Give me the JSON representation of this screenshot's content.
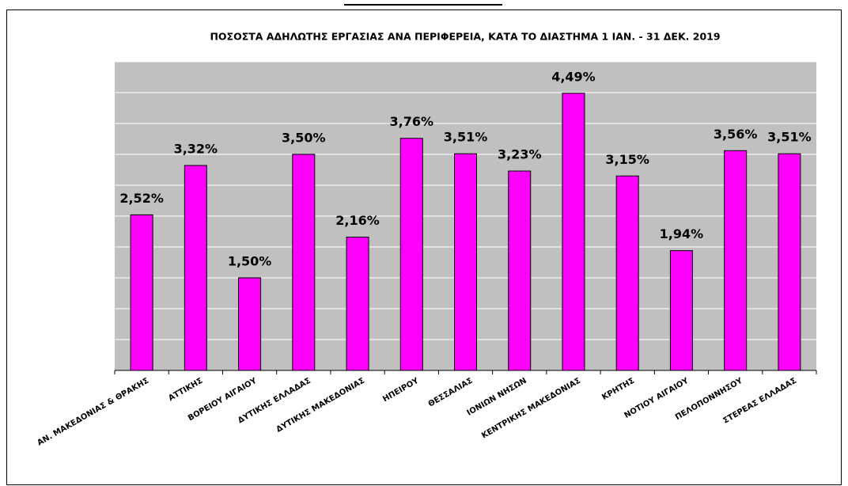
{
  "chart_data": {
    "type": "bar",
    "title": "ΠΟΣΟΣΤΑ ΑΔΗΛΩΤΗΣ ΕΡΓΑΣΙΑΣ ΑΝΑ ΠΕΡΙΦΕΡΕΙΑ,  ΚΑΤΑ ΤΟ ΔΙΑΣΤΗΜΑ 1 ΙΑΝ. - 31  ΔΕΚ. 2019",
    "categories": [
      "ΑΝ. ΜΑΚΕΔΟΝΙΑΣ & ΘΡΑΚΗΣ",
      "ΑΤΤΙΚΗΣ",
      "ΒΟΡΕΙΟΥ ΑΙΓΑΙΟΥ",
      "ΔΥΤΙΚΗΣ ΕΛΛΑΔΑΣ",
      "ΔΥΤΙΚΗΣ ΜΑΚΕΔΟΝΙΑΣ",
      "ΗΠΕΙΡΟΥ",
      "ΘΕΣΣΑΛΙΑΣ",
      "ΙΟΝΙΩΝ ΝΗΣΩΝ",
      "ΚΕΝΤΡΙΚΗΣ ΜΑΚΕΔΟΝΙΑΣ",
      "ΚΡΗΤΗΣ",
      "ΝΟΤΙΟΥ ΑΙΓΑΙΟΥ",
      "ΠΕΛΟΠΟΝΝΗΣΟΥ",
      "ΣΤΕΡΕΑΣ ΕΛΛΑΔΑΣ"
    ],
    "values": [
      2.52,
      3.32,
      1.5,
      3.5,
      2.16,
      3.76,
      3.51,
      3.23,
      4.49,
      3.15,
      1.94,
      3.56,
      3.51
    ],
    "value_labels": [
      "2,52%",
      "3,32%",
      "1,50%",
      "3,50%",
      "2,16%",
      "3,76%",
      "3,51%",
      "3,23%",
      "4,49%",
      "3,15%",
      "1,94%",
      "3,56%",
      "3,51%"
    ],
    "color": "#ff00ff",
    "ylim": [
      0,
      5
    ],
    "yticks": [
      0,
      0.5,
      1,
      1.5,
      2,
      2.5,
      3,
      3.5,
      4,
      4.5,
      5
    ],
    "grid": true
  }
}
